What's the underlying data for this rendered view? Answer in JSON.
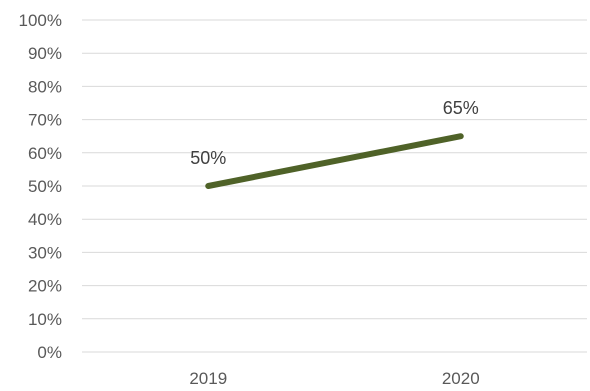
{
  "chart_data": {
    "type": "line",
    "categories": [
      "2019",
      "2020"
    ],
    "series": [
      {
        "values": [
          50,
          65
        ],
        "data_labels": [
          "50%",
          "65%"
        ],
        "color": "#4f6228"
      }
    ],
    "ylim": [
      0,
      100
    ],
    "yticks": [
      "0%",
      "10%",
      "20%",
      "30%",
      "40%",
      "50%",
      "60%",
      "70%",
      "80%",
      "90%",
      "100%"
    ],
    "grid": true,
    "title": "",
    "xlabel": "",
    "ylabel": ""
  },
  "colors": {
    "series": "#4f6228",
    "gridline": "#d9d9d9",
    "tick_text": "#595959",
    "label_text": "#404040"
  }
}
